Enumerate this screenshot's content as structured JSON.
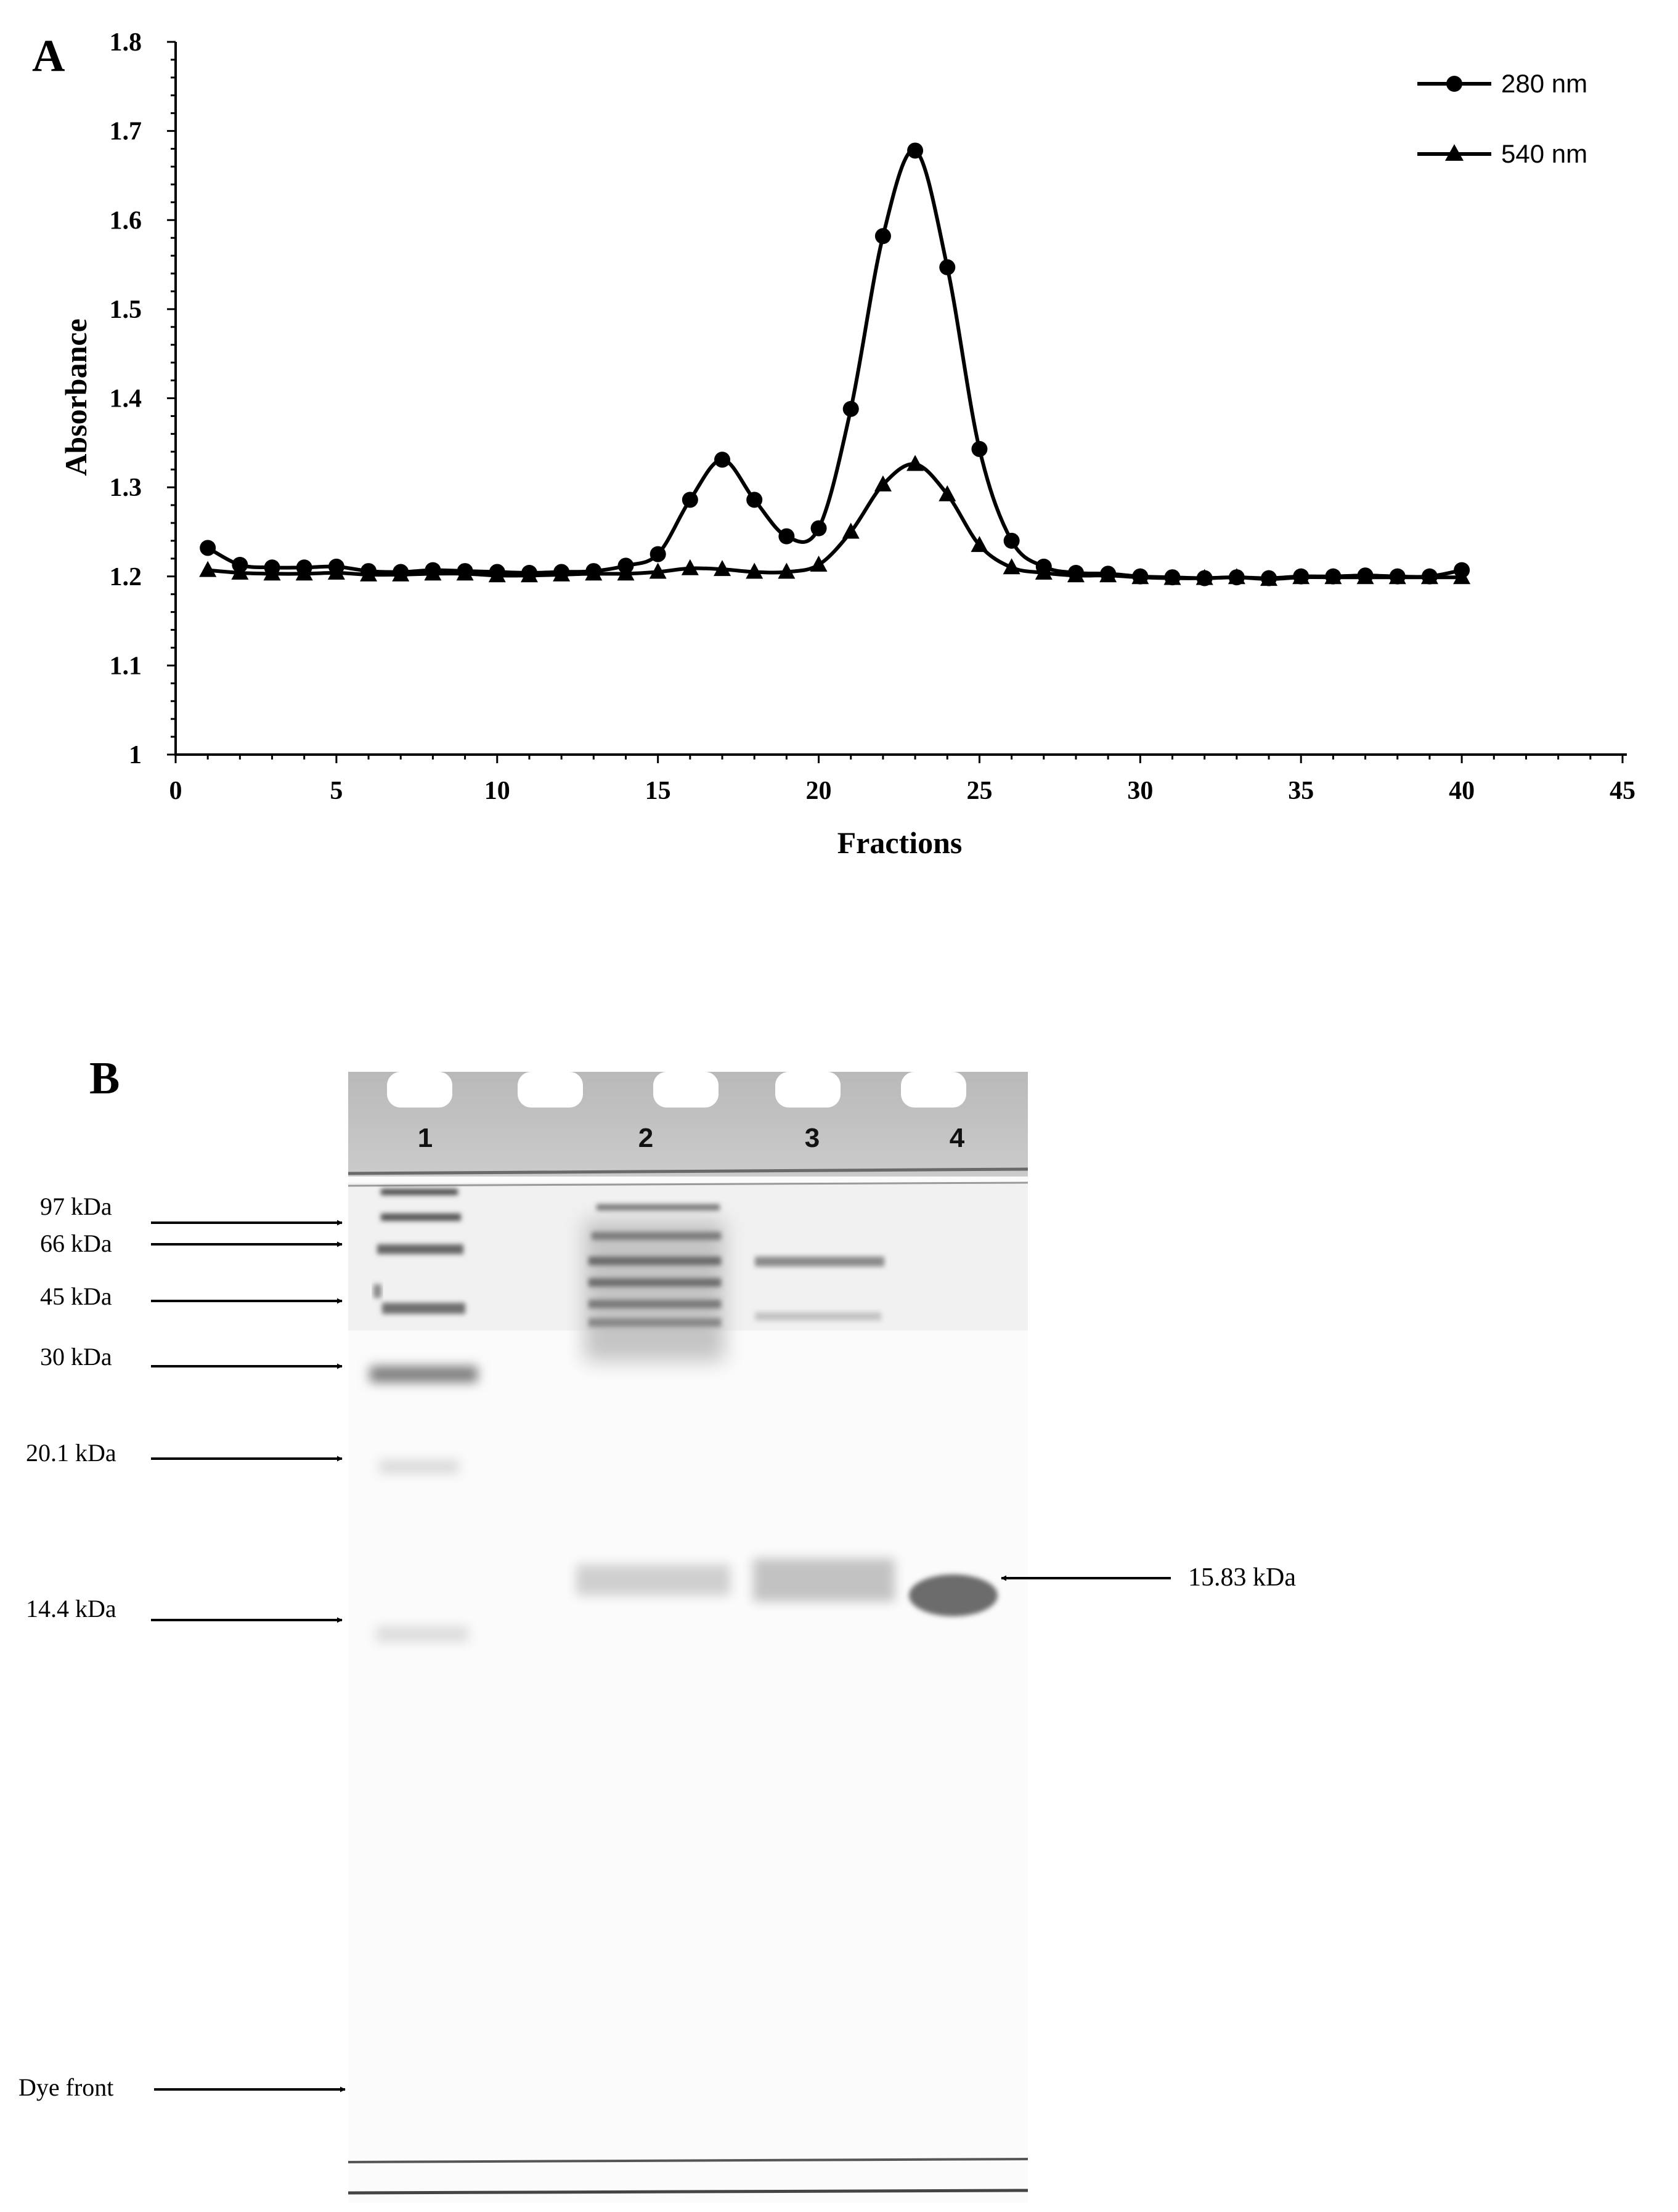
{
  "panel_a": {
    "label": "A",
    "chart_data": {
      "type": "line",
      "xlabel": "Fractions",
      "ylabel": "Absorbance",
      "xlim": [
        0,
        45
      ],
      "ylim": [
        1,
        1.8
      ],
      "xticks": [
        "0",
        "5",
        "10",
        "15",
        "20",
        "25",
        "30",
        "35",
        "40",
        "45"
      ],
      "yticks": [
        "1",
        "1.1",
        "1.2",
        "1.3",
        "1.4",
        "1.5",
        "1.6",
        "1.7",
        "1.8"
      ],
      "x": [
        1,
        2,
        3,
        4,
        5,
        6,
        7,
        8,
        9,
        10,
        11,
        12,
        13,
        14,
        15,
        16,
        17,
        18,
        19,
        20,
        21,
        22,
        23,
        24,
        25,
        26,
        27,
        28,
        29,
        30,
        31,
        32,
        33,
        34,
        35,
        36,
        37,
        38,
        39,
        40
      ],
      "series": [
        {
          "name": "280 nm",
          "marker": "circle",
          "values": [
            1.232,
            1.213,
            1.21,
            1.21,
            1.211,
            1.206,
            1.205,
            1.207,
            1.206,
            1.205,
            1.204,
            1.205,
            1.206,
            1.212,
            1.225,
            1.286,
            1.331,
            1.286,
            1.245,
            1.254,
            1.388,
            1.582,
            1.678,
            1.547,
            1.343,
            1.24,
            1.211,
            1.204,
            1.203,
            1.2,
            1.199,
            1.198,
            1.199,
            1.198,
            1.2,
            1.2,
            1.201,
            1.2,
            1.2,
            1.207
          ]
        },
        {
          "name": "540 nm",
          "marker": "triangle",
          "values": [
            1.207,
            1.204,
            1.203,
            1.203,
            1.204,
            1.202,
            1.202,
            1.203,
            1.203,
            1.201,
            1.201,
            1.202,
            1.203,
            1.203,
            1.205,
            1.209,
            1.208,
            1.205,
            1.205,
            1.213,
            1.25,
            1.303,
            1.326,
            1.292,
            1.235,
            1.21,
            1.204,
            1.201,
            1.201,
            1.199,
            1.198,
            1.198,
            1.199,
            1.197,
            1.199,
            1.199,
            1.199,
            1.199,
            1.199,
            1.199
          ]
        }
      ],
      "legend_position": "top-right",
      "grid": false
    }
  },
  "panel_b": {
    "label": "B",
    "lanes": [
      "1",
      "2",
      "3",
      "4"
    ],
    "markers": [
      "97 kDa",
      "66 kDa",
      "45 kDa",
      "30 kDa",
      "20.1 kDa",
      "14.4 kDa"
    ],
    "dye_front_label": "Dye front",
    "band_annotation": "15.83 kDa"
  }
}
